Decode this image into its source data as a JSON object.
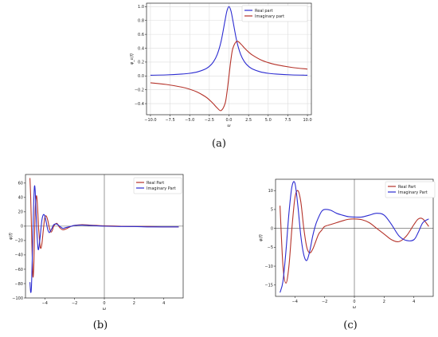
{
  "chart_data": [
    {
      "id": "a",
      "type": "line",
      "caption": "(a)",
      "xlabel": "ω",
      "ylabel": "φ_ε(f)",
      "xlim": [
        -10.5,
        10.5
      ],
      "ylim": [
        -0.56,
        1.05
      ],
      "xticks": [
        -10.0,
        -7.5,
        -5.0,
        -2.5,
        0.0,
        2.5,
        5.0,
        7.5,
        10.0
      ],
      "xtick_labels": [
        "−10.0",
        "−7.5",
        "−5.0",
        "−2.5",
        "0.0",
        "2.5",
        "5.0",
        "7.5",
        "10.0"
      ],
      "yticks": [
        -0.4,
        -0.2,
        0.0,
        0.2,
        0.4,
        0.6,
        0.8,
        1.0
      ],
      "ytick_labels": [
        "−0.4",
        "−0.2",
        "0.0",
        "0.2",
        "0.4",
        "0.6",
        "0.8",
        "1.0"
      ],
      "grid": true,
      "legend_position": "top-right",
      "series": [
        {
          "name": "Real part",
          "color": "#2b2bd1",
          "x": [
            -10,
            -8,
            -6,
            -5,
            -4,
            -3,
            -2.5,
            -2,
            -1.5,
            -1,
            -0.5,
            -0.25,
            0,
            0.25,
            0.5,
            1,
            1.5,
            2,
            2.5,
            3,
            4,
            5,
            6,
            8,
            10
          ],
          "y": [
            0.01,
            0.015,
            0.027,
            0.038,
            0.059,
            0.1,
            0.138,
            0.2,
            0.308,
            0.5,
            0.8,
            0.941,
            1.0,
            0.941,
            0.8,
            0.5,
            0.308,
            0.2,
            0.138,
            0.1,
            0.059,
            0.038,
            0.027,
            0.015,
            0.01
          ]
        },
        {
          "name": "Imaginary part",
          "color": "#b5332a",
          "x": [
            -10,
            -8,
            -6,
            -5,
            -4,
            -3,
            -2.5,
            -2,
            -1.5,
            -1,
            -0.5,
            -0.25,
            0,
            0.25,
            0.5,
            1,
            1.5,
            2,
            2.5,
            3,
            4,
            5,
            6,
            8,
            10
          ],
          "y": [
            -0.099,
            -0.123,
            -0.162,
            -0.192,
            -0.235,
            -0.3,
            -0.345,
            -0.4,
            -0.462,
            -0.5,
            -0.4,
            -0.235,
            0.0,
            0.235,
            0.4,
            0.5,
            0.462,
            0.4,
            0.345,
            0.3,
            0.235,
            0.192,
            0.162,
            0.123,
            0.099
          ]
        }
      ]
    },
    {
      "id": "b",
      "type": "line",
      "caption": "(b)",
      "xlabel": "ω",
      "ylabel": "φ(f)",
      "xlim": [
        -5.3,
        5.3
      ],
      "ylim": [
        -100,
        72
      ],
      "xticks": [
        -4,
        -2,
        0,
        2,
        4
      ],
      "xtick_labels": [
        "−4",
        "−2",
        "0",
        "2",
        "4"
      ],
      "yticks": [
        -100,
        -80,
        -60,
        -40,
        -20,
        0,
        20,
        40,
        60
      ],
      "ytick_labels": [
        "−100",
        "−80",
        "−60",
        "−40",
        "−20",
        "0",
        "20",
        "40",
        "60"
      ],
      "grid": false,
      "zero_lines": true,
      "legend_position": "top-right",
      "series": [
        {
          "name": "Real Part",
          "color": "#b5332a",
          "x": [
            -5,
            -4.95,
            -4.9,
            -4.85,
            -4.8,
            -4.75,
            -4.7,
            -4.65,
            -4.6,
            -4.55,
            -4.5,
            -4.45,
            -4.4,
            -4.3,
            -4.2,
            -4.1,
            -4.0,
            -3.9,
            -3.8,
            -3.7,
            -3.6,
            -3.5,
            -3.4,
            -3.2,
            -3.0,
            -2.8,
            -2.6,
            -2.4,
            -2.2,
            -2.0,
            -1.5,
            -1.0,
            -0.5,
            0,
            1,
            2,
            3,
            4,
            5
          ],
          "y": [
            67,
            40,
            0,
            -40,
            -70,
            -60,
            -20,
            20,
            38,
            42,
            30,
            10,
            -8,
            -30,
            -25,
            -5,
            12,
            14,
            8,
            -2,
            -8,
            -6,
            0,
            4,
            -2,
            -5,
            -4,
            -2,
            0,
            1,
            2,
            1.5,
            1,
            0.5,
            0,
            -0.5,
            -0.5,
            -1,
            -1
          ]
        },
        {
          "name": "Imaginary Part",
          "color": "#2b2bd1",
          "x": [
            -5,
            -4.95,
            -4.9,
            -4.85,
            -4.8,
            -4.75,
            -4.7,
            -4.65,
            -4.6,
            -4.55,
            -4.5,
            -4.45,
            -4.4,
            -4.3,
            -4.2,
            -4.1,
            -4.0,
            -3.9,
            -3.8,
            -3.7,
            -3.6,
            -3.5,
            -3.4,
            -3.2,
            -3.0,
            -2.8,
            -2.6,
            -2.4,
            -2.2,
            -2.0,
            -1.5,
            -1.0,
            -0.5,
            0,
            1,
            2,
            3,
            4,
            5
          ],
          "y": [
            -78,
            -92,
            -85,
            -50,
            -10,
            30,
            55,
            50,
            25,
            0,
            -20,
            -32,
            -30,
            -12,
            8,
            16,
            14,
            5,
            -5,
            -9,
            -6,
            -2,
            2,
            3,
            0,
            -3,
            -2,
            -1,
            0,
            1,
            1.5,
            1,
            0.5,
            0,
            -0.5,
            -0.5,
            -1,
            -1,
            -1
          ]
        }
      ]
    },
    {
      "id": "c",
      "type": "line",
      "caption": "(c)",
      "xlabel": "ω",
      "ylabel": "φ(f)",
      "xlim": [
        -5.3,
        5.3
      ],
      "ylim": [
        -18,
        13
      ],
      "xticks": [
        -4,
        -2,
        0,
        2,
        4
      ],
      "xtick_labels": [
        "−4",
        "−2",
        "0",
        "2",
        "4"
      ],
      "yticks": [
        -15,
        -10,
        -5,
        0,
        5,
        10
      ],
      "ytick_labels": [
        "−15",
        "−10",
        "−5",
        "0",
        "5",
        "10"
      ],
      "grid": false,
      "zero_lines": true,
      "legend_position": "top-right",
      "series": [
        {
          "name": "Real Part",
          "color": "#b5332a",
          "x": [
            -5,
            -4.8,
            -4.6,
            -4.4,
            -4.2,
            -4.0,
            -3.8,
            -3.6,
            -3.4,
            -3.2,
            -3.0,
            -2.8,
            -2.6,
            -2.4,
            -2.2,
            -2.0,
            -1.6,
            -1.2,
            -0.8,
            -0.4,
            0,
            0.5,
            1.0,
            1.5,
            2.0,
            2.5,
            3.0,
            3.5,
            4.0,
            4.3,
            4.6,
            5.0
          ],
          "y": [
            6,
            -10,
            -14.5,
            -10,
            0,
            8,
            10,
            7,
            0,
            -5,
            -6.5,
            -5.5,
            -3.5,
            -1.5,
            -0.5,
            0.5,
            1,
            1.5,
            2,
            2.4,
            2.5,
            2.3,
            1.5,
            0,
            -1.5,
            -3,
            -3.5,
            -2,
            1,
            2.5,
            2.5,
            0.5
          ]
        },
        {
          "name": "Imaginary Part",
          "color": "#2b2bd1",
          "x": [
            -5,
            -4.8,
            -4.6,
            -4.4,
            -4.2,
            -4.0,
            -3.8,
            -3.6,
            -3.4,
            -3.2,
            -3.0,
            -2.8,
            -2.6,
            -2.4,
            -2.2,
            -2.0,
            -1.6,
            -1.2,
            -0.8,
            -0.4,
            0,
            0.5,
            1.0,
            1.5,
            2.0,
            2.5,
            3.0,
            3.5,
            4.0,
            4.3,
            4.6,
            5.0
          ],
          "y": [
            -17,
            -14,
            -6,
            4,
            11,
            12,
            6,
            -2,
            -7,
            -8.5,
            -6,
            -2,
            1,
            3,
            4.5,
            5,
            4.8,
            4,
            3.5,
            3.1,
            3,
            3,
            3.5,
            4,
            3.5,
            1,
            -2,
            -3.2,
            -3,
            -1,
            1.5,
            2.5
          ]
        }
      ]
    }
  ]
}
